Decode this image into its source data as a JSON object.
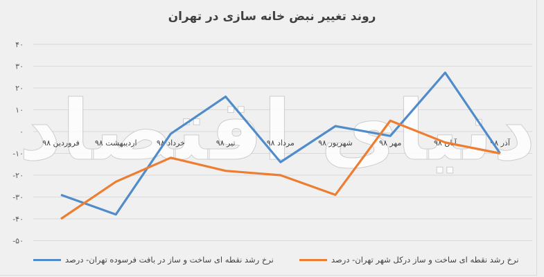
{
  "title": "روند تغییر نبض خانه سازی در تهران",
  "watermark": "دنیای اقتصاد",
  "colors": {
    "background": "#f0f0f0",
    "grid": "#d9d9d9",
    "series_blue": "#4f8cc9",
    "series_orange": "#ed7d31"
  },
  "y_axis": {
    "ticks": [
      "۴۰",
      "۳۰",
      "۲۰",
      "۱۰",
      "۰",
      "-۱۰",
      "-۲۰",
      "-۳۰",
      "-۴۰",
      "-۵۰"
    ]
  },
  "legend": [
    {
      "label": "نرخ رشد نقطه ای ساخت و ساز در بافت فرسوده تهران- درصد",
      "color": "#4f8cc9"
    },
    {
      "label": "نرخ رشد نقطه ای ساخت و ساز درکل شهر تهران- درصد",
      "color": "#ed7d31"
    }
  ],
  "chart_data": {
    "type": "line",
    "title": "روند تغییر نبض خانه سازی در تهران",
    "categories": [
      "فروردین ۹۸",
      "اردیبهشت ۹۸",
      "خرداد ۹۸",
      "تیر ۹۸",
      "مرداد ۹۸",
      "شهریور ۹۸",
      "مهر ۹۸",
      "آبان ۹۸",
      "آذر ۹۸"
    ],
    "series": [
      {
        "name": "نرخ رشد نقطه ای ساخت و ساز در بافت فرسوده تهران- درصد",
        "color": "#4f8cc9",
        "values": [
          -29,
          -38,
          -1,
          16,
          -14,
          2.5,
          -2,
          27,
          -10
        ]
      },
      {
        "name": "نرخ رشد نقطه ای ساخت و ساز درکل شهر تهران- درصد",
        "color": "#ed7d31",
        "values": [
          -40,
          -23,
          -12,
          -18,
          -20,
          -29,
          5,
          -5,
          -10
        ]
      }
    ],
    "xlabel": "",
    "ylabel": "",
    "ylim": [
      -50,
      40
    ],
    "yticks": [
      40,
      30,
      20,
      10,
      0,
      -10,
      -20,
      -30,
      -40,
      -50
    ],
    "grid": true,
    "legend_position": "bottom"
  }
}
